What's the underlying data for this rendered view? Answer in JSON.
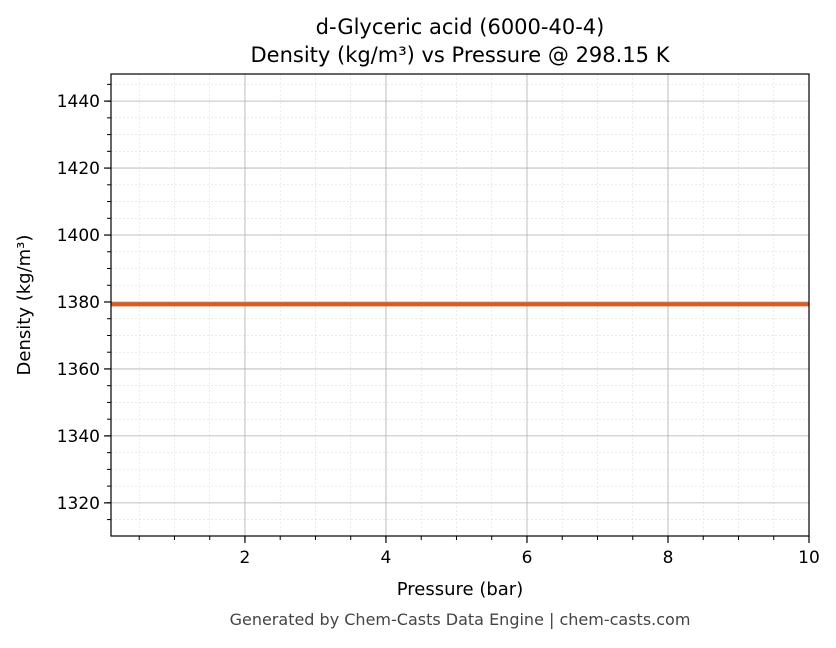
{
  "chart_data": {
    "type": "line",
    "title": "d-Glyceric acid (6000-40-4)",
    "subtitle": "Density (kg/m³) vs Pressure @ 298.15 K",
    "xlabel": "Pressure (bar)",
    "ylabel": "Density (kg/m³)",
    "xlim": [
      0.1,
      10
    ],
    "ylim": [
      1310.1,
      1448.1
    ],
    "xticks": [
      2,
      4,
      6,
      8,
      10
    ],
    "yticks": [
      1320,
      1340,
      1360,
      1380,
      1400,
      1420,
      1440
    ],
    "grid": true,
    "series": [
      {
        "x": [
          0.1,
          10
        ],
        "y": [
          1379.3,
          1379.3
        ],
        "color": "#e05a20"
      }
    ]
  },
  "footer": "Generated by Chem-Casts Data Engine | chem-casts.com"
}
